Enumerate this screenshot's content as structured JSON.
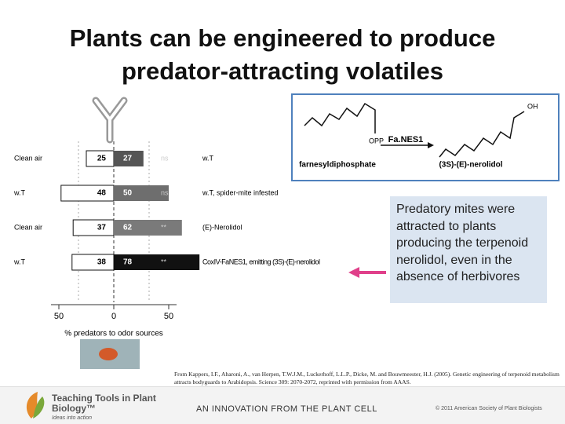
{
  "title": "Plants can be engineered to produce predator-attracting volatiles",
  "chart": {
    "rows": [
      {
        "label": "Clean air",
        "left": 25,
        "right": 27,
        "sig": "ns",
        "treatment": "w.T",
        "color": "#555555"
      },
      {
        "label": "w.T",
        "left": 48,
        "right": 50,
        "sig": "ns",
        "treatment": "w.T, spider-mite infested",
        "color": "#6e6e6e"
      },
      {
        "label": "Clean air",
        "left": 37,
        "right": 62,
        "sig": "**",
        "treatment": "(E)-Nerolidol",
        "color": "#7a7a7a"
      },
      {
        "label": "w.T",
        "left": 38,
        "right": 78,
        "sig": "**",
        "treatment": "CoxIV-FaNES1, emitting (3S)-(E)-nerolidol",
        "color": "#111111"
      }
    ],
    "xticks": [
      {
        "value": -50,
        "label": "50"
      },
      0,
      50
    ],
    "xlabel": "% predators to odor sources"
  },
  "scheme": {
    "enzyme": "Fa.NES1",
    "substrate_group": "OPP",
    "substrate": "farnesyldiphosphate",
    "product_group": "OH",
    "product": "(3S)-(E)-nerolidol"
  },
  "callout": "Predatory mites were attracted to plants producing the terpenoid nerolidol, even in the absence of herbivores",
  "citation": "From Kappers, I.F., Aharoni, A., van Herpen, T.W.J.M., Luckerhoff, L.L.P., Dicke, M. and Bouwmeester, H.J. (2005). Genetic engineering of terpenoid metabolism attracts bodyguards to Arabidopsis. Science 309: 2070-2072, reprinted with permission from AAAS.",
  "footer": {
    "brand": "Teaching Tools in Plant Biology™",
    "tagline": "Ideas into action",
    "innovation": "AN INNOVATION FROM THE PLANT CELL",
    "copyright": "© 2011 American Society of Plant Biologists"
  }
}
